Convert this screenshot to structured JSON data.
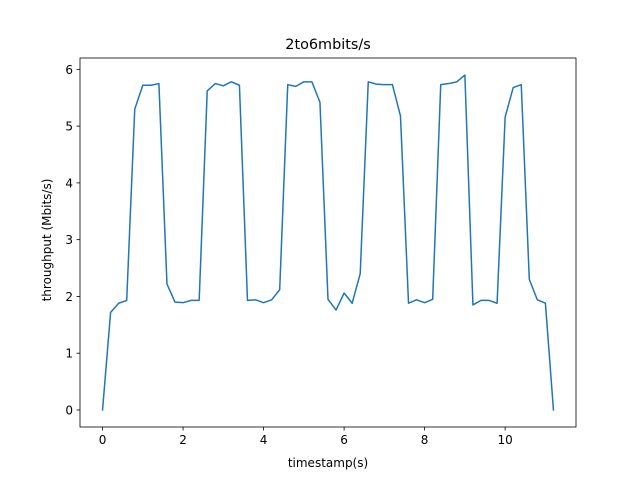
{
  "chart_data": {
    "type": "line",
    "title": "2to6mbits/s",
    "xlabel": "timestamp(s)",
    "ylabel": "throughput (Mbits/s)",
    "xlim": [
      -0.56,
      11.76
    ],
    "ylim": [
      -0.3,
      6.2
    ],
    "xticks": [
      0,
      2,
      4,
      6,
      8,
      10
    ],
    "yticks": [
      0,
      1,
      2,
      3,
      4,
      5,
      6
    ],
    "grid": false,
    "color": "#1f77b4",
    "series": [
      {
        "x": [
          0.0,
          0.2,
          0.4,
          0.6,
          0.8,
          1.0,
          1.2,
          1.4,
          1.6,
          1.8,
          2.0,
          2.2,
          2.4,
          2.6,
          2.8,
          3.0,
          3.2,
          3.4,
          3.6,
          3.8,
          4.0,
          4.2,
          4.4,
          4.6,
          4.8,
          5.0,
          5.2,
          5.4,
          5.6,
          5.8,
          6.0,
          6.2,
          6.4,
          6.6,
          6.8,
          7.0,
          7.2,
          7.4,
          7.6,
          7.8,
          8.0,
          8.2,
          8.4,
          8.6,
          8.8,
          9.0,
          9.2,
          9.4,
          9.6,
          9.8,
          10.0,
          10.2,
          10.4,
          10.6,
          10.8,
          11.0,
          11.2
        ],
        "y": [
          0.0,
          1.72,
          1.88,
          1.93,
          5.3,
          5.72,
          5.72,
          5.75,
          2.22,
          1.9,
          1.89,
          1.93,
          1.93,
          5.62,
          5.75,
          5.71,
          5.78,
          5.72,
          1.93,
          1.94,
          1.89,
          1.94,
          2.12,
          5.73,
          5.7,
          5.78,
          5.78,
          5.42,
          1.95,
          1.76,
          2.06,
          1.88,
          2.4,
          5.78,
          5.74,
          5.73,
          5.73,
          5.18,
          1.88,
          1.94,
          1.89,
          1.95,
          5.73,
          5.75,
          5.78,
          5.9,
          1.85,
          1.93,
          1.93,
          1.88,
          5.16,
          5.68,
          5.73,
          2.3,
          1.94,
          1.88,
          0.0
        ]
      }
    ]
  }
}
